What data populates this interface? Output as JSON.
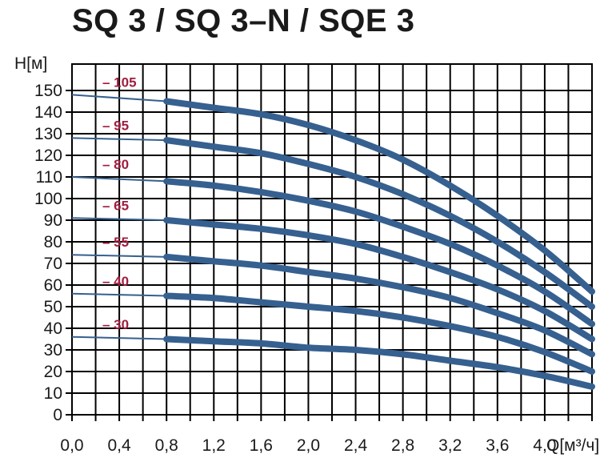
{
  "title": "SQ 3 / SQ 3–N / SQE 3",
  "colors": {
    "curve": "#36608f",
    "label": "#a11d3f",
    "grid": "#000000"
  },
  "chart_data": {
    "type": "line",
    "title": "SQ 3 / SQ 3–N / SQE 3",
    "xlabel": "Q[м³/ч]",
    "ylabel": "H[м]",
    "xlim": [
      0,
      4.4
    ],
    "ylim": [
      0,
      150
    ],
    "grid": true,
    "legend": "none",
    "x_ticks": [
      "0,0",
      "0,4",
      "0,8",
      "1,2",
      "1,6",
      "2,0",
      "2,4",
      "2,8",
      "3,2",
      "3,6",
      "4,0"
    ],
    "y_ticks": [
      "0",
      "10",
      "20",
      "30",
      "40",
      "50",
      "60",
      "70",
      "80",
      "90",
      "100",
      "110",
      "120",
      "130",
      "140",
      "150"
    ],
    "series": [
      {
        "name": "– 105",
        "x": [
          0,
          0.8,
          1.2,
          1.6,
          2.0,
          2.4,
          2.8,
          3.2,
          3.6,
          4.0,
          4.4
        ],
        "values": [
          148,
          145,
          142,
          139,
          134,
          127,
          118,
          106,
          92,
          76,
          57
        ]
      },
      {
        "name": "– 95",
        "x": [
          0,
          0.8,
          1.2,
          1.6,
          2.0,
          2.4,
          2.8,
          3.2,
          3.6,
          4.0,
          4.4
        ],
        "values": [
          128,
          127,
          124,
          121,
          116,
          110,
          102,
          92,
          80,
          66,
          50
        ]
      },
      {
        "name": "– 80",
        "x": [
          0,
          0.8,
          1.2,
          1.6,
          2.0,
          2.4,
          2.8,
          3.2,
          3.6,
          4.0,
          4.4
        ],
        "values": [
          110,
          108,
          106,
          103,
          99,
          94,
          87,
          79,
          69,
          57,
          42
        ]
      },
      {
        "name": "– 65",
        "x": [
          0,
          0.8,
          1.2,
          1.6,
          2.0,
          2.4,
          2.8,
          3.2,
          3.6,
          4.0,
          4.4
        ],
        "values": [
          91,
          90,
          88,
          86,
          83,
          79,
          73,
          66,
          58,
          48,
          35
        ]
      },
      {
        "name": "– 55",
        "x": [
          0,
          0.8,
          1.2,
          1.6,
          2.0,
          2.4,
          2.8,
          3.2,
          3.6,
          4.0,
          4.4
        ],
        "values": [
          74,
          73,
          71,
          69,
          66,
          63,
          59,
          54,
          47,
          39,
          28
        ]
      },
      {
        "name": "– 40",
        "x": [
          0,
          0.8,
          1.2,
          1.6,
          2.0,
          2.4,
          2.8,
          3.2,
          3.6,
          4.0,
          4.4
        ],
        "values": [
          56,
          55,
          54,
          52,
          50,
          48,
          45,
          41,
          36,
          29,
          20
        ]
      },
      {
        "name": "– 30",
        "x": [
          0,
          0.8,
          1.2,
          1.6,
          2.0,
          2.4,
          2.8,
          3.2,
          3.6,
          4.0,
          4.4
        ],
        "values": [
          36,
          35,
          34,
          33,
          31,
          30,
          28,
          25,
          22,
          18,
          13
        ]
      }
    ]
  }
}
